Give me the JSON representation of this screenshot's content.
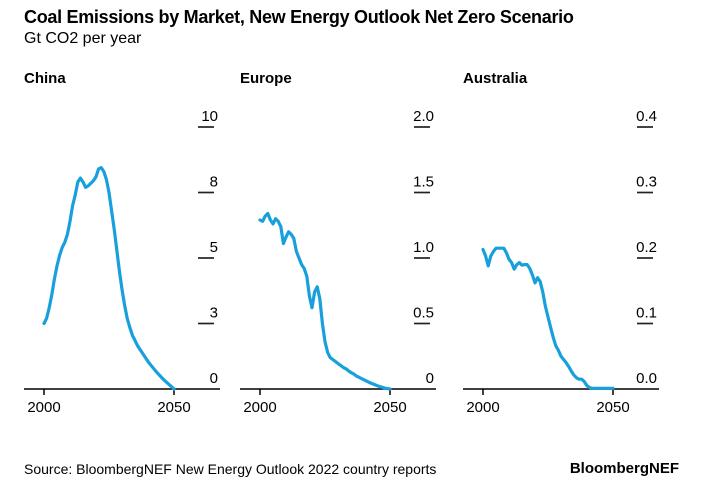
{
  "header": {
    "title": "Coal Emissions by Market, New Energy Outlook Net Zero Scenario",
    "subtitle": "Gt CO2 per year"
  },
  "footer": {
    "source": "Source: BloombergNEF New Energy Outlook 2022 country reports",
    "brand": "BloombergNEF"
  },
  "colors": {
    "line": "#18A0DC",
    "axis": "#000000",
    "tick": "#222222",
    "text": "#000000",
    "background": "#FFFFFF"
  },
  "chart_data": [
    {
      "type": "line",
      "title": "China",
      "ylabel": "Gt CO2 per year",
      "xlim": [
        2000,
        2050
      ],
      "ylim": [
        0,
        10
      ],
      "grid": false,
      "legend": "none",
      "xticks": {
        "values": [
          2000,
          2050
        ],
        "labels": [
          "2000",
          "2050"
        ]
      },
      "yticks": {
        "values": [
          0,
          2.5,
          5,
          7.5,
          10
        ],
        "labels": [
          "0",
          "3",
          "5",
          "8",
          "10"
        ]
      },
      "x": [
        2000,
        2001,
        2002,
        2003,
        2004,
        2005,
        2006,
        2007,
        2008,
        2009,
        2010,
        2011,
        2012,
        2013,
        2014,
        2015,
        2016,
        2017,
        2018,
        2019,
        2020,
        2021,
        2022,
        2023,
        2024,
        2025,
        2026,
        2027,
        2028,
        2029,
        2030,
        2031,
        2032,
        2033,
        2034,
        2035,
        2036,
        2037,
        2038,
        2039,
        2040,
        2041,
        2042,
        2043,
        2044,
        2045,
        2046,
        2047,
        2048,
        2049,
        2050
      ],
      "values": [
        2.5,
        2.7,
        3.1,
        3.6,
        4.2,
        4.7,
        5.1,
        5.4,
        5.6,
        5.9,
        6.4,
        7.0,
        7.4,
        7.9,
        8.05,
        7.9,
        7.7,
        7.75,
        7.85,
        7.95,
        8.1,
        8.4,
        8.45,
        8.3,
        8.0,
        7.5,
        6.8,
        6.1,
        5.3,
        4.5,
        3.8,
        3.2,
        2.7,
        2.35,
        2.05,
        1.85,
        1.65,
        1.5,
        1.35,
        1.2,
        1.05,
        0.92,
        0.8,
        0.68,
        0.57,
        0.46,
        0.36,
        0.27,
        0.18,
        0.09,
        0
      ]
    },
    {
      "type": "line",
      "title": "Europe",
      "ylabel": "Gt CO2 per year",
      "xlim": [
        2000,
        2050
      ],
      "ylim": [
        0,
        2.0
      ],
      "grid": false,
      "legend": "none",
      "xticks": {
        "values": [
          2000,
          2050
        ],
        "labels": [
          "2000",
          "2050"
        ]
      },
      "yticks": {
        "values": [
          0,
          0.5,
          1.0,
          1.5,
          2.0
        ],
        "labels": [
          "0",
          "0.5",
          "1.0",
          "1.5",
          "2.0"
        ]
      },
      "x": [
        2000,
        2001,
        2002,
        2003,
        2004,
        2005,
        2006,
        2007,
        2008,
        2009,
        2010,
        2011,
        2012,
        2013,
        2014,
        2015,
        2016,
        2017,
        2018,
        2019,
        2020,
        2021,
        2022,
        2023,
        2024,
        2025,
        2026,
        2027,
        2028,
        2029,
        2030,
        2031,
        2032,
        2033,
        2034,
        2035,
        2036,
        2037,
        2038,
        2039,
        2040,
        2041,
        2042,
        2043,
        2044,
        2045,
        2046,
        2047,
        2048,
        2049,
        2050
      ],
      "values": [
        1.29,
        1.28,
        1.32,
        1.34,
        1.29,
        1.26,
        1.3,
        1.28,
        1.24,
        1.11,
        1.16,
        1.2,
        1.18,
        1.15,
        1.05,
        1.0,
        0.95,
        0.92,
        0.86,
        0.71,
        0.62,
        0.74,
        0.78,
        0.69,
        0.5,
        0.36,
        0.28,
        0.24,
        0.225,
        0.21,
        0.195,
        0.18,
        0.165,
        0.155,
        0.14,
        0.125,
        0.115,
        0.1,
        0.09,
        0.08,
        0.07,
        0.06,
        0.05,
        0.042,
        0.034,
        0.026,
        0.019,
        0.013,
        0.007,
        0.003,
        0
      ]
    },
    {
      "type": "line",
      "title": "Australia",
      "ylabel": "Gt CO2 per year",
      "xlim": [
        2000,
        2050
      ],
      "ylim": [
        0,
        0.4
      ],
      "grid": false,
      "legend": "none",
      "xticks": {
        "values": [
          2000,
          2050
        ],
        "labels": [
          "2000",
          "2050"
        ]
      },
      "yticks": {
        "values": [
          0,
          0.1,
          0.2,
          0.3,
          0.4
        ],
        "labels": [
          "0.0",
          "0.1",
          "0.2",
          "0.3",
          "0.4"
        ]
      },
      "x": [
        2000,
        2001,
        2002,
        2003,
        2004,
        2005,
        2006,
        2007,
        2008,
        2009,
        2010,
        2011,
        2012,
        2013,
        2014,
        2015,
        2016,
        2017,
        2018,
        2019,
        2020,
        2021,
        2022,
        2023,
        2024,
        2025,
        2026,
        2027,
        2028,
        2029,
        2030,
        2031,
        2032,
        2033,
        2034,
        2035,
        2036,
        2037,
        2038,
        2039,
        2040,
        2041,
        2042,
        2043,
        2044,
        2045,
        2046,
        2047,
        2048,
        2049,
        2050
      ],
      "values": [
        0.213,
        0.203,
        0.188,
        0.203,
        0.21,
        0.215,
        0.215,
        0.215,
        0.215,
        0.208,
        0.198,
        0.193,
        0.183,
        0.19,
        0.193,
        0.189,
        0.19,
        0.19,
        0.184,
        0.174,
        0.162,
        0.17,
        0.164,
        0.148,
        0.126,
        0.11,
        0.094,
        0.079,
        0.066,
        0.059,
        0.05,
        0.045,
        0.04,
        0.034,
        0.027,
        0.021,
        0.017,
        0.015,
        0.015,
        0.011,
        0.005,
        0.002,
        0.001,
        0.001,
        0.001,
        0.001,
        0.001,
        0.001,
        0.001,
        0.001,
        0.001
      ]
    }
  ]
}
